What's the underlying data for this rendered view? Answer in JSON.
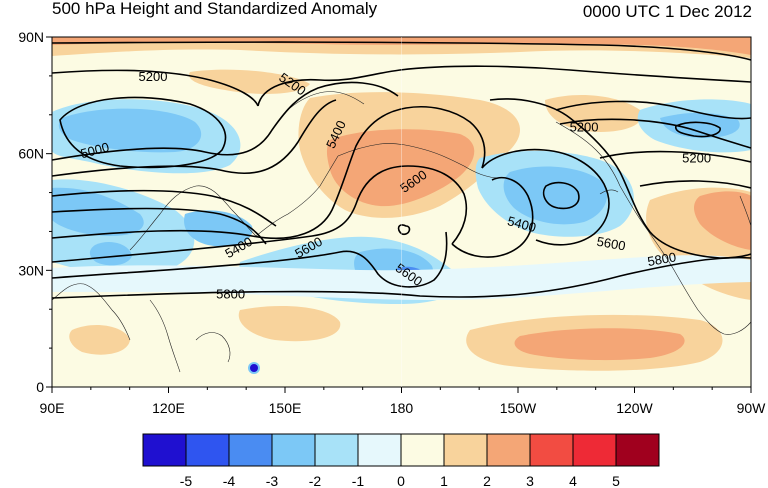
{
  "title": "500 hPa Height and Standardized Anomaly",
  "valid_time": "0000 UTC 1 Dec 2012",
  "lat_ticks": [
    {
      "label": "90N",
      "lat": 90
    },
    {
      "label": "60N",
      "lat": 60
    },
    {
      "label": "30N",
      "lat": 30
    },
    {
      "label": "0",
      "lat": 0
    }
  ],
  "lon_ticks": [
    {
      "label": "90E",
      "lon": 90
    },
    {
      "label": "120E",
      "lon": 120
    },
    {
      "label": "150E",
      "lon": 150
    },
    {
      "label": "180",
      "lon": 180
    },
    {
      "label": "150W",
      "lon": 210
    },
    {
      "label": "120W",
      "lon": 240
    },
    {
      "label": "90W",
      "lon": 270
    }
  ],
  "contour_labels": [
    {
      "text": "5200",
      "lon": 116,
      "lat": 80
    },
    {
      "text": "5200",
      "lon": 152,
      "lat": 78,
      "rot": 35
    },
    {
      "text": "5000",
      "lon": 101,
      "lat": 61,
      "rot": -15
    },
    {
      "text": "5400",
      "lon": 163,
      "lat": 65,
      "rot": -65
    },
    {
      "text": "5600",
      "lon": 183,
      "lat": 53,
      "rot": -35
    },
    {
      "text": "5200",
      "lon": 227,
      "lat": 67
    },
    {
      "text": "5200",
      "lon": 256,
      "lat": 59
    },
    {
      "text": "5400",
      "lon": 138,
      "lat": 36,
      "rot": -30
    },
    {
      "text": "5600",
      "lon": 156,
      "lat": 36,
      "rot": -30
    },
    {
      "text": "5600",
      "lon": 182,
      "lat": 29,
      "rot": 35
    },
    {
      "text": "5400",
      "lon": 211,
      "lat": 42,
      "rot": 15
    },
    {
      "text": "5600",
      "lon": 234,
      "lat": 37,
      "rot": 10
    },
    {
      "text": "5800",
      "lon": 247,
      "lat": 33,
      "rot": -10
    },
    {
      "text": "5800",
      "lon": 136,
      "lat": 24
    }
  ],
  "colorbar": {
    "colors": [
      "#1f10d0",
      "#2f55f0",
      "#4a8cf2",
      "#7cc8f6",
      "#a8e2f8",
      "#e6f8fc",
      "#fcfbe3",
      "#f8d39c",
      "#f4a676",
      "#f24c42",
      "#ee2a36",
      "#a0001e"
    ],
    "labels": [
      "-5",
      "-4",
      "-3",
      "-2",
      "-1",
      "0",
      "1",
      "2",
      "3",
      "4",
      "5"
    ]
  }
}
